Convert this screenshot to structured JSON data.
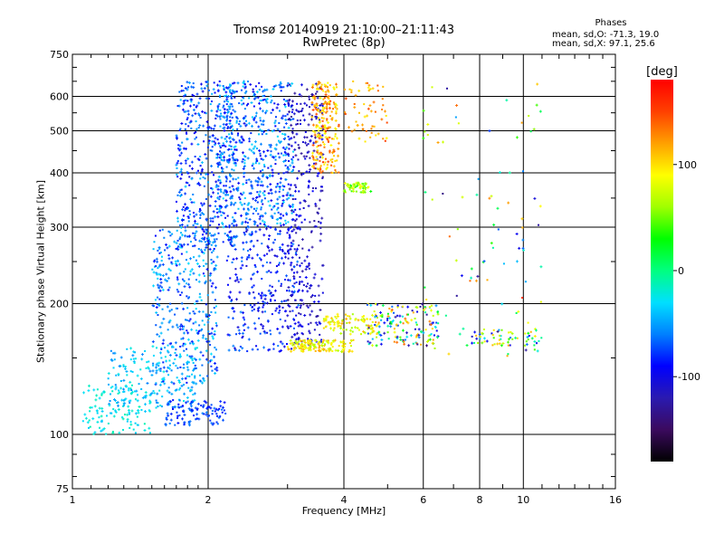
{
  "chart_data": {
    "type": "scatter",
    "title_line1": "Tromsø 20140919 21:10:00–21:11:43",
    "title_line2": "RwPretec (8p)",
    "phases": {
      "header": "Phases",
      "o_text": "mean, sd,O: -71.3, 19.0",
      "x_text": "mean, sd,X:  97.1, 25.6"
    },
    "xlabel": "Frequency [MHz]",
    "ylabel": "Stationary phase Virtual Height [km]",
    "x_scale": "log",
    "y_scale": "log",
    "xlim": [
      1,
      16
    ],
    "ylim": [
      75,
      750
    ],
    "x_ticks": [
      1,
      2,
      4,
      6,
      8,
      10,
      16
    ],
    "y_ticks": [
      75,
      100,
      200,
      300,
      400,
      500,
      600,
      750
    ],
    "grid": true,
    "colorbar": {
      "label": "[deg]",
      "range": [
        -180,
        180
      ],
      "ticks": [
        100,
        0,
        -100
      ],
      "colormap": [
        "#000000",
        "#3b0a5e",
        "#2a1ab0",
        "#0000ff",
        "#0080ff",
        "#00e0ff",
        "#00ff80",
        "#00ff00",
        "#a0ff00",
        "#ffff00",
        "#ffa000",
        "#ff4000",
        "#ff0000"
      ]
    },
    "point_clusters": [
      {
        "x_range": [
          1.05,
          1.5
        ],
        "y_range": [
          100,
          130
        ],
        "n": 120,
        "phase": [
          -40,
          -10
        ]
      },
      {
        "x_range": [
          1.2,
          1.9
        ],
        "y_range": [
          115,
          160
        ],
        "n": 180,
        "phase": [
          -60,
          -20
        ]
      },
      {
        "x_range": [
          1.5,
          2.1
        ],
        "y_range": [
          130,
          300
        ],
        "n": 380,
        "phase": [
          -90,
          -30
        ]
      },
      {
        "x_range": [
          1.7,
          2.3
        ],
        "y_range": [
          270,
          650
        ],
        "n": 420,
        "phase": [
          -100,
          -40
        ]
      },
      {
        "x_range": [
          1.6,
          2.2
        ],
        "y_range": [
          105,
          120
        ],
        "n": 110,
        "phase": [
          -90,
          -60
        ]
      },
      {
        "x_range": [
          2.1,
          3.1
        ],
        "y_range": [
          300,
          650
        ],
        "n": 600,
        "phase": [
          -100,
          -30
        ]
      },
      {
        "x_range": [
          2.2,
          3.2
        ],
        "y_range": [
          155,
          300
        ],
        "n": 300,
        "phase": [
          -110,
          -60
        ]
      },
      {
        "x_range": [
          3.0,
          3.6
        ],
        "y_range": [
          160,
          650
        ],
        "n": 320,
        "phase": [
          -130,
          -90
        ]
      },
      {
        "x_range": [
          3.4,
          3.9
        ],
        "y_range": [
          400,
          650
        ],
        "n": 220,
        "phase": [
          80,
          150
        ]
      },
      {
        "x_range": [
          3.0,
          4.2
        ],
        "y_range": [
          155,
          165
        ],
        "n": 140,
        "phase": [
          60,
          120
        ]
      },
      {
        "x_range": [
          3.6,
          4.8
        ],
        "y_range": [
          170,
          190
        ],
        "n": 90,
        "phase": [
          60,
          120
        ]
      },
      {
        "x_range": [
          4.0,
          4.6
        ],
        "y_range": [
          360,
          380
        ],
        "n": 60,
        "phase": [
          30,
          90
        ]
      },
      {
        "x_range": [
          4.0,
          5.0
        ],
        "y_range": [
          470,
          650
        ],
        "n": 60,
        "phase": [
          90,
          150
        ]
      },
      {
        "x_range": [
          4.5,
          6.5
        ],
        "y_range": [
          160,
          200
        ],
        "n": 160,
        "phase": [
          -130,
          140
        ]
      },
      {
        "x_range": [
          6.0,
          11.0
        ],
        "y_range": [
          150,
          650
        ],
        "n": 90,
        "phase": [
          -140,
          160
        ]
      },
      {
        "x_range": [
          7.5,
          11.0
        ],
        "y_range": [
          160,
          175
        ],
        "n": 60,
        "phase": [
          -120,
          120
        ]
      }
    ]
  }
}
